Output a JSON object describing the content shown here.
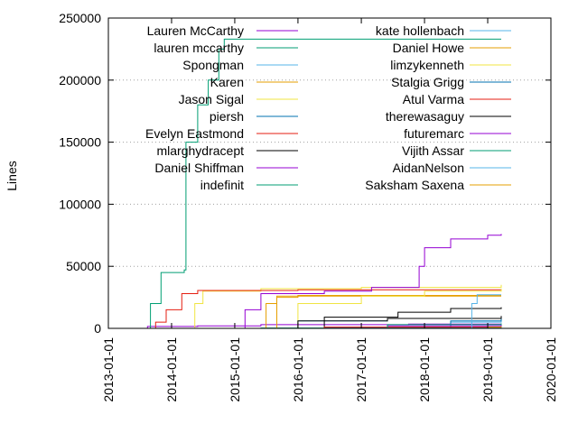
{
  "chart_data": {
    "type": "line",
    "title": "",
    "xlabel": "",
    "ylabel": "Lines",
    "x_type": "date",
    "xlim": [
      "2013-01-01",
      "2020-01-01"
    ],
    "ylim": [
      0,
      250000
    ],
    "x_ticks": [
      "2013-01-01",
      "2014-01-01",
      "2015-01-01",
      "2016-01-01",
      "2017-01-01",
      "2018-01-01",
      "2019-01-01",
      "2020-01-01"
    ],
    "y_ticks": [
      0,
      50000,
      100000,
      150000,
      200000,
      250000
    ],
    "y_tick_labels": [
      "0",
      "50000",
      "100000",
      "150000",
      "200000",
      "250000"
    ],
    "grid": "horizontal dotted",
    "legend_placement": "inside top, two columns",
    "series": [
      {
        "name": "Lauren McCarthy",
        "color": "#9400d3",
        "points": [
          [
            "2013-07-01",
            0
          ],
          [
            "2013-08-15",
            1500
          ],
          [
            "2014-06-01",
            2000
          ],
          [
            "2015-06-01",
            3000
          ],
          [
            "2017-10-01",
            3500
          ],
          [
            "2019-03-20",
            4000
          ]
        ]
      },
      {
        "name": "lauren mccarthy",
        "color": "#009e73",
        "points": [
          [
            "2013-08-01",
            0
          ],
          [
            "2015-06-01",
            300
          ],
          [
            "2019-03-20",
            600
          ]
        ]
      },
      {
        "name": "Spongman",
        "color": "#56b4e9",
        "points": [
          [
            "2015-07-01",
            0
          ],
          [
            "2016-01-01",
            6000
          ],
          [
            "2017-06-01",
            8000
          ],
          [
            "2019-03-20",
            9000
          ]
        ]
      },
      {
        "name": "Karen",
        "color": "#e69f00",
        "points": [
          [
            "2015-06-01",
            0
          ],
          [
            "2015-07-01",
            20000
          ],
          [
            "2015-09-01",
            26000
          ],
          [
            "2016-01-01",
            26500
          ],
          [
            "2019-03-20",
            26500
          ]
        ]
      },
      {
        "name": "Jason Sigal",
        "color": "#f0e442",
        "points": [
          [
            "2014-04-01",
            0
          ],
          [
            "2014-05-15",
            20000
          ],
          [
            "2014-07-01",
            30000
          ],
          [
            "2015-06-01",
            32000
          ],
          [
            "2017-01-01",
            33000
          ],
          [
            "2019-03-20",
            35000
          ]
        ]
      },
      {
        "name": "piersh",
        "color": "#0072b2",
        "points": [
          [
            "2015-06-01",
            0
          ],
          [
            "2016-06-01",
            800
          ],
          [
            "2019-03-20",
            1500
          ]
        ]
      },
      {
        "name": "Evelyn Eastmond",
        "color": "#e51e10",
        "points": [
          [
            "2013-07-15",
            0
          ],
          [
            "2013-10-01",
            5000
          ],
          [
            "2013-12-01",
            15000
          ],
          [
            "2014-03-01",
            28000
          ],
          [
            "2014-06-01",
            30500
          ],
          [
            "2016-01-01",
            31000
          ],
          [
            "2019-03-20",
            31000
          ]
        ]
      },
      {
        "name": "mlarghydracept",
        "color": "#000000",
        "points": [
          [
            "2015-07-01",
            0
          ],
          [
            "2016-06-01",
            9000
          ],
          [
            "2017-08-01",
            13000
          ],
          [
            "2018-06-01",
            16000
          ],
          [
            "2019-03-20",
            17000
          ]
        ]
      },
      {
        "name": "Daniel Shiffman",
        "color": "#9400d3",
        "points": [
          [
            "2014-08-01",
            0
          ],
          [
            "2015-03-01",
            15000
          ],
          [
            "2015-06-01",
            28000
          ],
          [
            "2016-06-01",
            30000
          ],
          [
            "2017-03-01",
            33000
          ],
          [
            "2017-12-01",
            50000
          ],
          [
            "2018-01-01",
            65000
          ],
          [
            "2018-06-01",
            72000
          ],
          [
            "2019-01-01",
            75000
          ],
          [
            "2019-03-20",
            76000
          ]
        ]
      },
      {
        "name": "indefinit",
        "color": "#009e73",
        "points": [
          [
            "2013-06-20",
            0
          ],
          [
            "2013-09-01",
            20000
          ],
          [
            "2013-11-01",
            45000
          ],
          [
            "2014-03-15",
            47000
          ],
          [
            "2014-03-25",
            150000
          ],
          [
            "2014-06-01",
            180000
          ],
          [
            "2014-08-01",
            200000
          ],
          [
            "2014-10-01",
            225000
          ],
          [
            "2014-11-01",
            233000
          ],
          [
            "2019-03-20",
            233000
          ]
        ]
      },
      {
        "name": "kate hollenbach",
        "color": "#56b4e9",
        "points": [
          [
            "2017-10-01",
            0
          ],
          [
            "2018-06-01",
            5000
          ],
          [
            "2019-03-20",
            9000
          ]
        ]
      },
      {
        "name": "Daniel Howe",
        "color": "#e69f00",
        "points": [
          [
            "2015-06-01",
            0
          ],
          [
            "2015-09-01",
            25000
          ],
          [
            "2016-01-01",
            26000
          ],
          [
            "2019-03-20",
            26000
          ]
        ]
      },
      {
        "name": "limzykenneth",
        "color": "#f0e442",
        "points": [
          [
            "2015-08-01",
            0
          ],
          [
            "2016-01-01",
            20000
          ],
          [
            "2017-01-01",
            26000
          ],
          [
            "2018-01-01",
            30000
          ],
          [
            "2019-03-20",
            32000
          ]
        ]
      },
      {
        "name": "Stalgia Grigg",
        "color": "#0072b2",
        "points": [
          [
            "2017-10-01",
            0
          ],
          [
            "2018-06-01",
            6000
          ],
          [
            "2019-03-20",
            8000
          ]
        ]
      },
      {
        "name": "Atul Varma",
        "color": "#e51e10",
        "points": [
          [
            "2016-03-01",
            0
          ],
          [
            "2016-06-01",
            1000
          ],
          [
            "2019-03-20",
            2000
          ]
        ]
      },
      {
        "name": "therewasaguy",
        "color": "#000000",
        "points": [
          [
            "2015-06-01",
            0
          ],
          [
            "2016-01-01",
            6000
          ],
          [
            "2017-06-01",
            8000
          ],
          [
            "2019-03-20",
            10000
          ]
        ]
      },
      {
        "name": "futuremarc",
        "color": "#9400d3",
        "points": [
          [
            "2016-06-01",
            0
          ],
          [
            "2017-06-01",
            2000
          ],
          [
            "2019-03-20",
            3000
          ]
        ]
      },
      {
        "name": "Vijith Assar",
        "color": "#009e73",
        "points": [
          [
            "2016-06-01",
            0
          ],
          [
            "2017-06-01",
            3000
          ],
          [
            "2019-03-20",
            4000
          ]
        ]
      },
      {
        "name": "AidanNelson",
        "color": "#56b4e9",
        "points": [
          [
            "2017-10-01",
            0
          ],
          [
            "2018-10-01",
            20000
          ],
          [
            "2018-11-01",
            27000
          ],
          [
            "2019-03-20",
            27000
          ]
        ]
      },
      {
        "name": "Saksham Saxena",
        "color": "#e69f00",
        "points": [
          [
            "2018-10-01",
            0
          ],
          [
            "2019-01-01",
            1000
          ],
          [
            "2019-03-20",
            1500
          ]
        ]
      }
    ]
  }
}
